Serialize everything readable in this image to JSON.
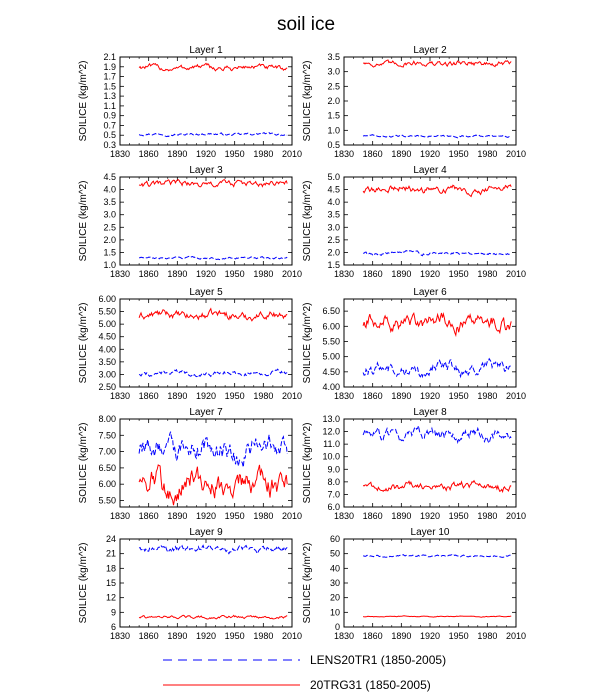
{
  "figure": {
    "title": "soil ice"
  },
  "colors": {
    "lens": "#0000ff",
    "trg": "#ff0000",
    "axis": "#000000"
  },
  "legend": {
    "entries": [
      {
        "label": "LENS20TR1 (1850-2005)",
        "style": "dashed",
        "color": "#0000ff"
      },
      {
        "label": "20TRG31 (1850-2005)",
        "style": "solid",
        "color": "#ff0000"
      }
    ]
  },
  "chart_data": [
    {
      "type": "line",
      "title": "Layer 1",
      "ylabel": "SOILICE  (kg/m^2)",
      "xlim": [
        1830,
        2010
      ],
      "xticks": [
        1830,
        1860,
        1890,
        1920,
        1950,
        1980,
        2010
      ],
      "ylim": [
        0.3,
        2.1
      ],
      "yticks": [
        "0.3",
        "0.5",
        "0.7",
        "0.9",
        "1.1",
        "1.3",
        "1.5",
        "1.7",
        "1.9",
        "2.1"
      ],
      "series": [
        {
          "name": "LENS20TR1 (1850-2005)",
          "style": "dashed",
          "x": [
            1850,
            2005
          ],
          "mean": 0.52,
          "noise": 0.015
        },
        {
          "name": "20TRG31 (1850-2005)",
          "style": "solid",
          "x": [
            1850,
            2005
          ],
          "mean": 1.88,
          "noise": 0.035
        }
      ]
    },
    {
      "type": "line",
      "title": "Layer 2",
      "ylabel": "SOILICE  (kg/m^2)",
      "xlim": [
        1830,
        2010
      ],
      "xticks": [
        1830,
        1860,
        1890,
        1920,
        1950,
        1980,
        2010
      ],
      "ylim": [
        0.5,
        3.5
      ],
      "yticks": [
        "0.5",
        "1.0",
        "1.5",
        "2.0",
        "2.5",
        "3.0",
        "3.5"
      ],
      "series": [
        {
          "name": "LENS20TR1 (1850-2005)",
          "style": "dashed",
          "x": [
            1850,
            2005
          ],
          "mean": 0.8,
          "noise": 0.02
        },
        {
          "name": "20TRG31 (1850-2005)",
          "style": "solid",
          "x": [
            1850,
            2005
          ],
          "mean": 3.28,
          "noise": 0.06
        }
      ]
    },
    {
      "type": "line",
      "title": "Layer 3",
      "ylabel": "SOILICE  (kg/m^2)",
      "xlim": [
        1830,
        2010
      ],
      "xticks": [
        1830,
        1860,
        1890,
        1920,
        1950,
        1980,
        2010
      ],
      "ylim": [
        1.0,
        4.5
      ],
      "yticks": [
        "1.0",
        "1.5",
        "2.0",
        "2.5",
        "3.0",
        "3.5",
        "4.0",
        "4.5"
      ],
      "series": [
        {
          "name": "LENS20TR1 (1850-2005)",
          "style": "dashed",
          "x": [
            1850,
            2005
          ],
          "mean": 1.28,
          "noise": 0.025
        },
        {
          "name": "20TRG31 (1850-2005)",
          "style": "solid",
          "x": [
            1850,
            2005
          ],
          "mean": 4.22,
          "noise": 0.08
        }
      ]
    },
    {
      "type": "line",
      "title": "Layer 4",
      "ylabel": "SOILICE  (kg/m^2)",
      "xlim": [
        1830,
        2010
      ],
      "xticks": [
        1830,
        1860,
        1890,
        1920,
        1950,
        1980,
        2010
      ],
      "ylim": [
        1.5,
        5.0
      ],
      "yticks": [
        "1.5",
        "2.0",
        "2.5",
        "3.0",
        "3.5",
        "4.0",
        "4.5",
        "5.0"
      ],
      "series": [
        {
          "name": "LENS20TR1 (1850-2005)",
          "style": "dashed",
          "x": [
            1850,
            2005
          ],
          "mean": 1.98,
          "noise": 0.04
        },
        {
          "name": "20TRG31 (1850-2005)",
          "style": "solid",
          "x": [
            1850,
            2005
          ],
          "mean": 4.52,
          "noise": 0.09
        }
      ]
    },
    {
      "type": "line",
      "title": "Layer 5",
      "ylabel": "SOILICE  (kg/m^2)",
      "xlim": [
        1830,
        2010
      ],
      "xticks": [
        1830,
        1860,
        1890,
        1920,
        1950,
        1980,
        2010
      ],
      "ylim": [
        2.5,
        6.0
      ],
      "yticks": [
        "2.50",
        "3.00",
        "3.50",
        "4.00",
        "4.50",
        "5.00",
        "5.50",
        "6.00"
      ],
      "series": [
        {
          "name": "LENS20TR1 (1850-2005)",
          "style": "dashed",
          "x": [
            1850,
            2005
          ],
          "mean": 3.05,
          "noise": 0.06
        },
        {
          "name": "20TRG31 (1850-2005)",
          "style": "solid",
          "x": [
            1850,
            2005
          ],
          "mean": 5.35,
          "noise": 0.1
        }
      ]
    },
    {
      "type": "line",
      "title": "Layer 6",
      "ylabel": "SOILICE  (kg/m^2)",
      "xlim": [
        1830,
        2010
      ],
      "xticks": [
        1830,
        1860,
        1890,
        1920,
        1950,
        1980,
        2010
      ],
      "ylim": [
        4.0,
        6.9
      ],
      "yticks": [
        "4.00",
        "4.50",
        "5.00",
        "5.50",
        "6.00",
        "6.50"
      ],
      "series": [
        {
          "name": "LENS20TR1 (1850-2005)",
          "style": "dashed",
          "x": [
            1850,
            2005
          ],
          "mean": 4.6,
          "noise": 0.13
        },
        {
          "name": "20TRG31 (1850-2005)",
          "style": "solid",
          "x": [
            1850,
            2005
          ],
          "mean": 6.1,
          "noise": 0.16
        }
      ]
    },
    {
      "type": "line",
      "title": "Layer 7",
      "ylabel": "SOILICE  (kg/m^2)",
      "xlim": [
        1830,
        2010
      ],
      "xticks": [
        1830,
        1860,
        1890,
        1920,
        1950,
        1980,
        2010
      ],
      "ylim": [
        5.3,
        8.0
      ],
      "yticks": [
        "5.50",
        "6.00",
        "6.50",
        "7.00",
        "7.50",
        "8.00"
      ],
      "series": [
        {
          "name": "LENS20TR1 (1850-2005)",
          "style": "dashed",
          "x": [
            1850,
            2005
          ],
          "mean": 7.05,
          "noise": 0.22
        },
        {
          "name": "20TRG31 (1850-2005)",
          "style": "solid",
          "x": [
            1850,
            2005
          ],
          "mean": 6.05,
          "noise": 0.25
        }
      ]
    },
    {
      "type": "line",
      "title": "Layer 8",
      "ylabel": "SOILICE  (kg/m^2)",
      "xlim": [
        1830,
        2010
      ],
      "xticks": [
        1830,
        1860,
        1890,
        1920,
        1950,
        1980,
        2010
      ],
      "ylim": [
        6.0,
        13.0
      ],
      "yticks": [
        "6.0",
        "7.0",
        "8.0",
        "9.0",
        "10.0",
        "11.0",
        "12.0",
        "13.0"
      ],
      "series": [
        {
          "name": "LENS20TR1 (1850-2005)",
          "style": "dashed",
          "x": [
            1850,
            2005
          ],
          "mean": 11.7,
          "noise": 0.3
        },
        {
          "name": "20TRG31 (1850-2005)",
          "style": "solid",
          "x": [
            1850,
            2005
          ],
          "mean": 7.65,
          "noise": 0.2
        }
      ]
    },
    {
      "type": "line",
      "title": "Layer 9",
      "ylabel": "SOILICE  (kg/m^2)",
      "xlim": [
        1830,
        2010
      ],
      "xticks": [
        1830,
        1860,
        1890,
        1920,
        1950,
        1980,
        2010
      ],
      "ylim": [
        6,
        24
      ],
      "yticks": [
        "6",
        "9",
        "12",
        "15",
        "18",
        "21",
        "24"
      ],
      "series": [
        {
          "name": "LENS20TR1 (1850-2005)",
          "style": "dashed",
          "x": [
            1850,
            2005
          ],
          "mean": 22.0,
          "noise": 0.45
        },
        {
          "name": "20TRG31 (1850-2005)",
          "style": "solid",
          "x": [
            1850,
            2005
          ],
          "mean": 8.0,
          "noise": 0.2
        }
      ]
    },
    {
      "type": "line",
      "title": "Layer 10",
      "ylabel": "SOILICE  (kg/m^2)",
      "xlim": [
        1830,
        2010
      ],
      "xticks": [
        1830,
        1860,
        1890,
        1920,
        1950,
        1980,
        2010
      ],
      "ylim": [
        0,
        60
      ],
      "yticks": [
        "0",
        "10",
        "20",
        "30",
        "40",
        "50",
        "60"
      ],
      "series": [
        {
          "name": "LENS20TR1 (1850-2005)",
          "style": "dashed",
          "x": [
            1850,
            2005
          ],
          "mean": 48.5,
          "noise": 0.4
        },
        {
          "name": "20TRG31 (1850-2005)",
          "style": "solid",
          "x": [
            1850,
            2005
          ],
          "mean": 7.2,
          "noise": 0.15
        }
      ]
    }
  ]
}
